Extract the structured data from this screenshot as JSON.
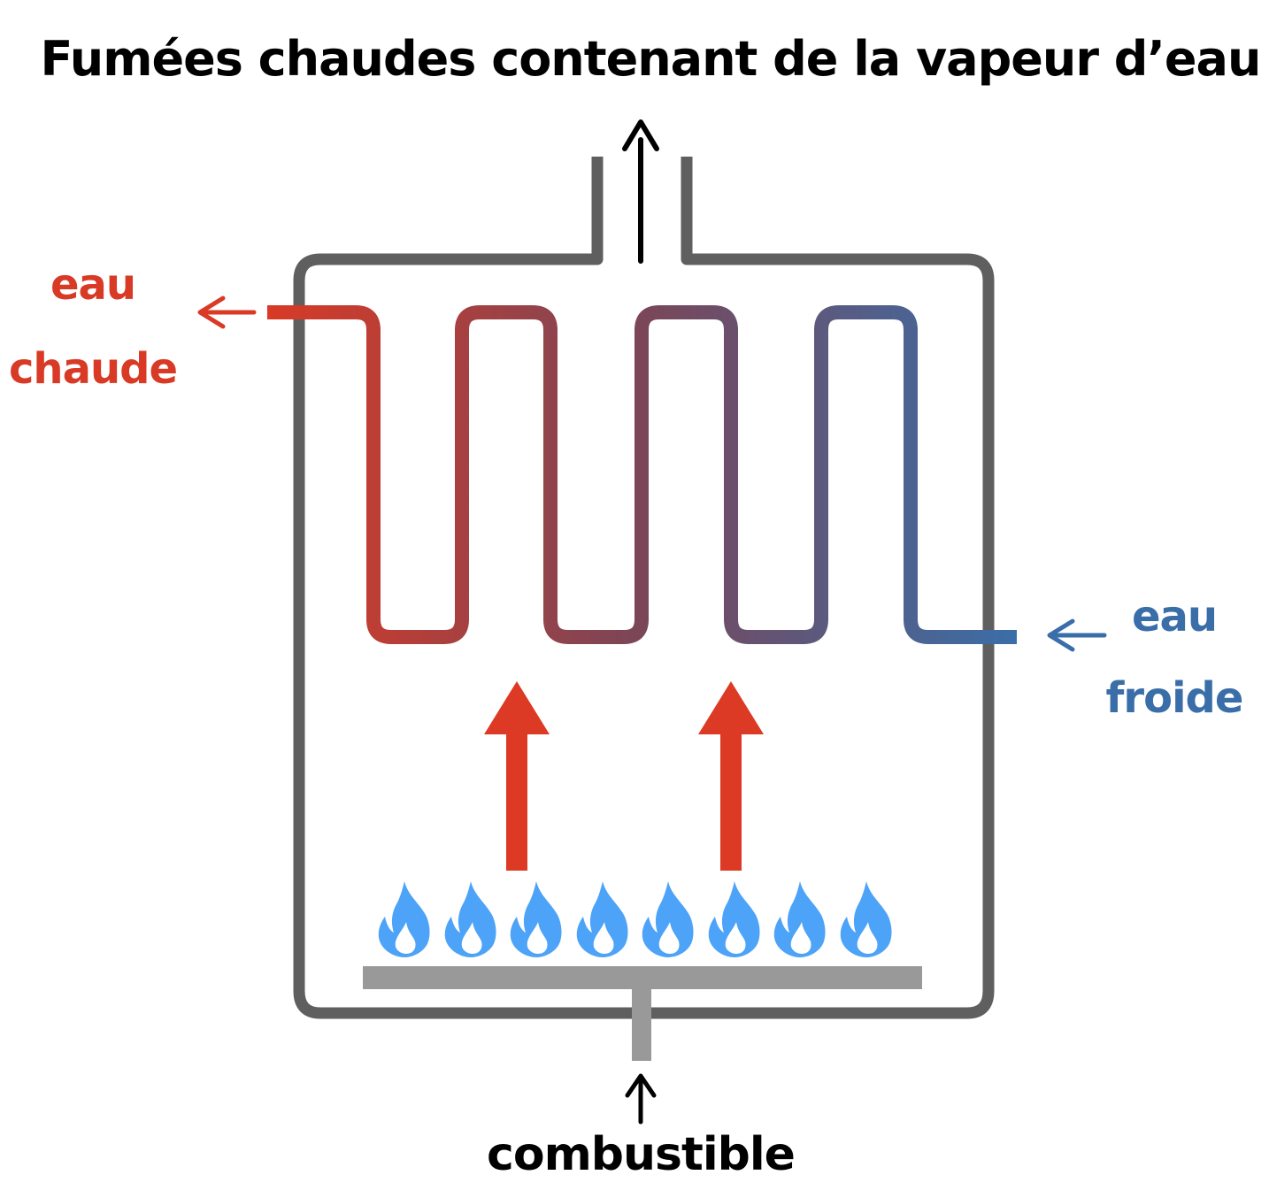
{
  "labels": {
    "title": "Fumées chaudes contenant de la vapeur d’eau",
    "hot_water_line1": "eau",
    "hot_water_line2": "chaude",
    "cold_water_line1": "eau",
    "cold_water_line2": "froide",
    "fuel": "combustible"
  },
  "colors": {
    "boiler_wall": "#5f5f5f",
    "burner": "#999999",
    "hot": "#d83a26",
    "cold": "#3a6ea8",
    "heat_arrow": "#dc3a25",
    "flame": "#4da3f7",
    "text": "#000000"
  },
  "icons": {
    "flame": "flame-icon",
    "arrow": "arrow-icon"
  }
}
